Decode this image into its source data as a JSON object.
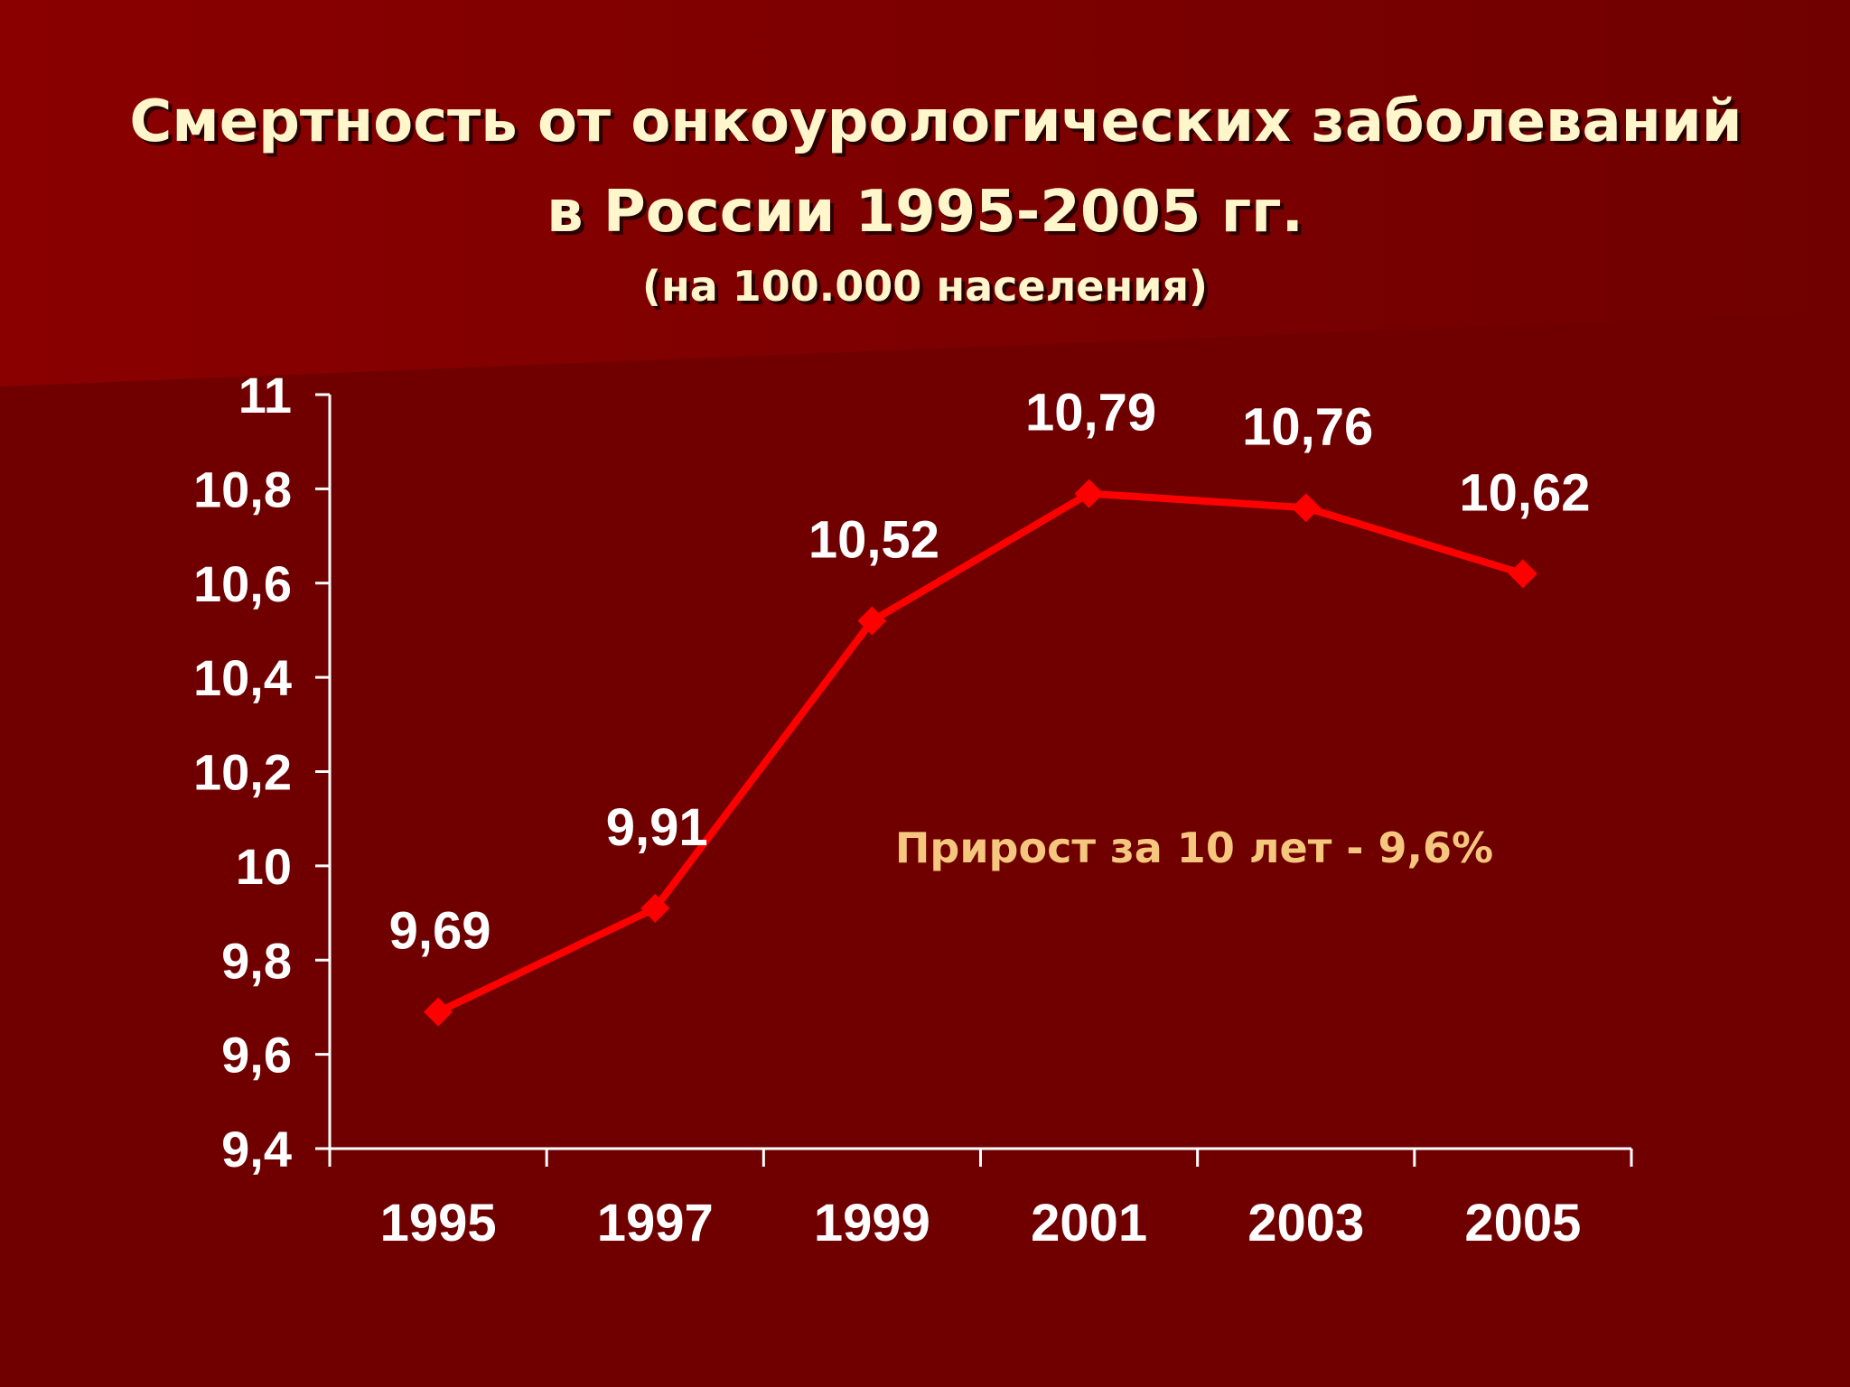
{
  "title": {
    "line1": "Смертность от онкоурологических заболеваний",
    "line2": "в России 1995-2005 гг.",
    "line3": "(на 100.000 населения)"
  },
  "colors": {
    "background": "#700000",
    "series": "#ff0000",
    "title_text": "#fff6cc",
    "annotation_text": "#f5c77e",
    "axis": "#ffffff"
  },
  "chart_data": {
    "type": "line",
    "x": [
      "1995",
      "1997",
      "1999",
      "2001",
      "2003",
      "2005"
    ],
    "series": [
      {
        "values": [
          9.69,
          9.91,
          10.52,
          10.79,
          10.76,
          10.62
        ],
        "labels": [
          "9,69",
          "9,91",
          "10,52",
          "10,79",
          "10,76",
          "10,62"
        ],
        "marker": "diamond"
      }
    ],
    "ylim": [
      9.4,
      11
    ],
    "yticks": [
      "9,4",
      "9,6",
      "9,8",
      "10",
      "10,2",
      "10,4",
      "10,6",
      "10,8",
      "11"
    ],
    "xlabel": "",
    "ylabel": "",
    "grid": false,
    "annotation": "Прирост за 10 лет - 9,6%"
  }
}
